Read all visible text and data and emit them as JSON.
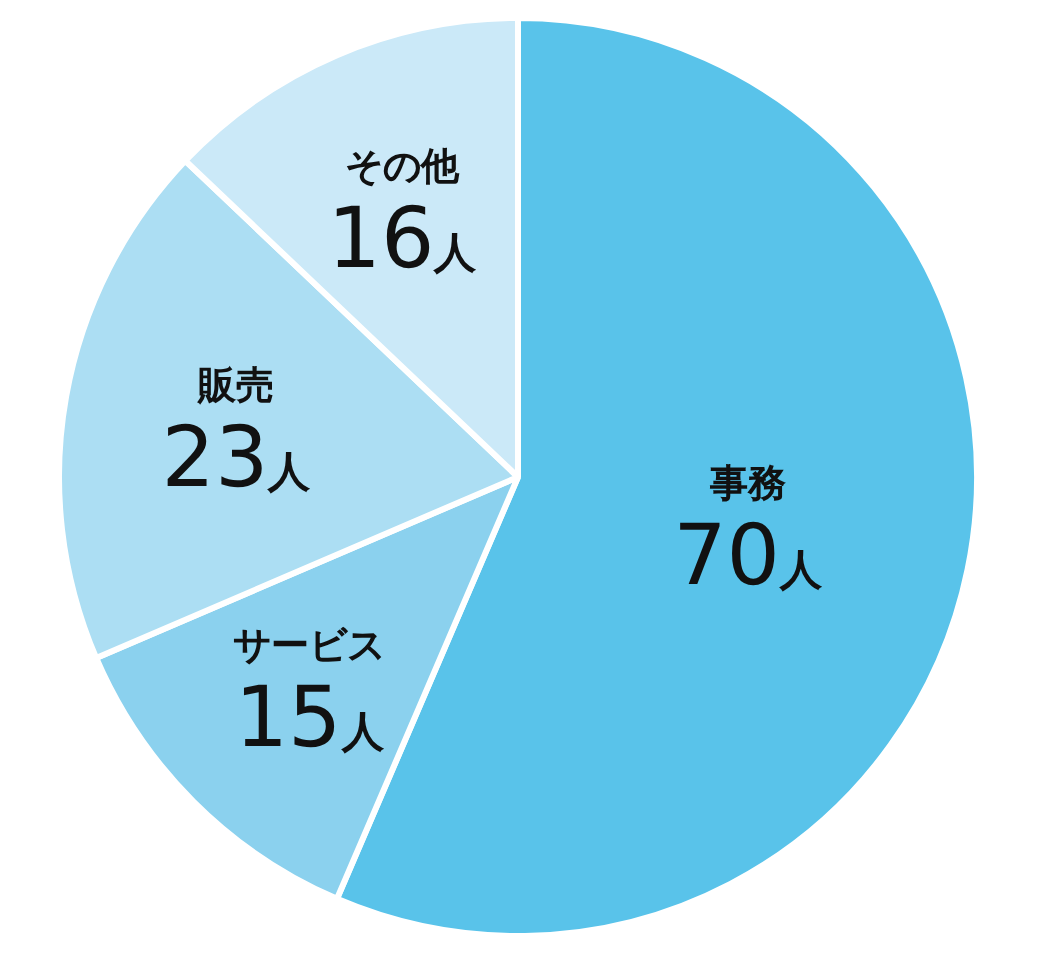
{
  "chart_data": {
    "type": "pie",
    "categories": [
      "事務",
      "サービス",
      "販売",
      "その他"
    ],
    "values": [
      70,
      15,
      23,
      16
    ],
    "colors": [
      "#59c3ea",
      "#8bd1ee",
      "#acdef3",
      "#cbe9f8"
    ],
    "value_labels": [
      "70人",
      "15人",
      "23人",
      "16人"
    ]
  }
}
